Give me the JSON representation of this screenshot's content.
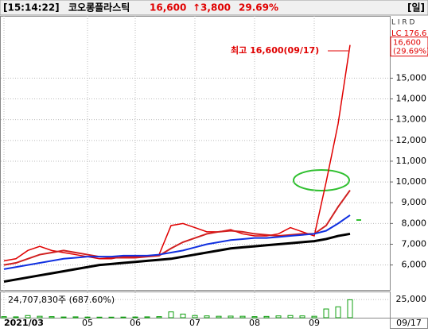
{
  "header": {
    "time": "[15:14:22]",
    "name": "코오롱플라스틱",
    "price": "16,600",
    "change": "↑3,800",
    "rate": "29.69%",
    "period": "[일]",
    "toolbar": "L I R D"
  },
  "chart_data": {
    "type": "line",
    "categories": [
      "2021/03",
      null,
      null,
      null,
      null,
      null,
      null,
      "05",
      null,
      null,
      null,
      "06",
      null,
      null,
      null,
      null,
      "07",
      null,
      null,
      null,
      null,
      "08",
      null,
      null,
      null,
      null,
      "09",
      null,
      null,
      null
    ],
    "series": [
      {
        "color": "#e00000",
        "values": [
          6200,
          6300,
          6700,
          6900,
          6700,
          6600,
          6500,
          6400,
          6300,
          6300,
          6400,
          6400,
          6400,
          6500,
          7900,
          8000,
          7800,
          7600,
          7600,
          7700,
          7500,
          7400,
          7400,
          7500,
          7800,
          7600,
          7400,
          10000,
          12800,
          16600
        ]
      },
      {
        "color": "#d02020",
        "values": [
          6000,
          6100,
          6300,
          6500,
          6600,
          6700,
          6600,
          6500,
          6400,
          6350,
          6350,
          6350,
          6400,
          6450,
          6800,
          7100,
          7300,
          7500,
          7600,
          7650,
          7600,
          7500,
          7450,
          7400,
          7450,
          7500,
          7500,
          7900,
          8800,
          9600
        ]
      },
      {
        "color": "#1030e0",
        "values": [
          5800,
          5900,
          6000,
          6100,
          6200,
          6300,
          6350,
          6400,
          6400,
          6400,
          6450,
          6450,
          6450,
          6500,
          6600,
          6700,
          6850,
          7000,
          7100,
          7200,
          7250,
          7300,
          7300,
          7350,
          7400,
          7450,
          7500,
          7650,
          8000,
          8400
        ]
      },
      {
        "color": "#000000",
        "values": [
          5200,
          5300,
          5400,
          5500,
          5600,
          5700,
          5800,
          5900,
          6000,
          6050,
          6100,
          6150,
          6200,
          6250,
          6300,
          6400,
          6500,
          6600,
          6700,
          6800,
          6850,
          6900,
          6950,
          7000,
          7050,
          7100,
          7150,
          7250,
          7400,
          7500
        ]
      }
    ],
    "ylim": [
      4800,
      18000
    ],
    "yticks": [
      {
        "value": 6000,
        "label": "6,000"
      },
      {
        "value": 7000,
        "label": "7,000"
      },
      {
        "value": 8000,
        "label": "8,000"
      },
      {
        "value": 9000,
        "label": "9,000"
      },
      {
        "value": 10000,
        "label": "10,000"
      },
      {
        "value": 11000,
        "label": "11,000"
      },
      {
        "value": 12000,
        "label": "12,000"
      },
      {
        "value": 13000,
        "label": "13,000"
      },
      {
        "value": 14000,
        "label": "14,000"
      },
      {
        "value": 15000,
        "label": "15,000"
      }
    ],
    "grid": true,
    "annotation": "최고 16,600(09/17)",
    "side_label": "LC 176.6",
    "price_box": [
      "16,600",
      "(29.69%)"
    ],
    "last_date": "09/17",
    "volume": {
      "label": "24,707,830주 (687.60%)",
      "color": "#10a010",
      "values": [
        1500,
        1200,
        3000,
        2000,
        1500,
        1000,
        1200,
        900,
        800,
        800,
        900,
        1000,
        1200,
        1500,
        8000,
        5000,
        3000,
        2500,
        2000,
        2200,
        2000,
        1500,
        1800,
        2500,
        3000,
        2500,
        2000,
        12000,
        15000,
        24707.83
      ],
      "ylim": [
        0,
        35000
      ],
      "yticks": [
        {
          "value": 25000,
          "label": "25,000"
        }
      ]
    }
  }
}
